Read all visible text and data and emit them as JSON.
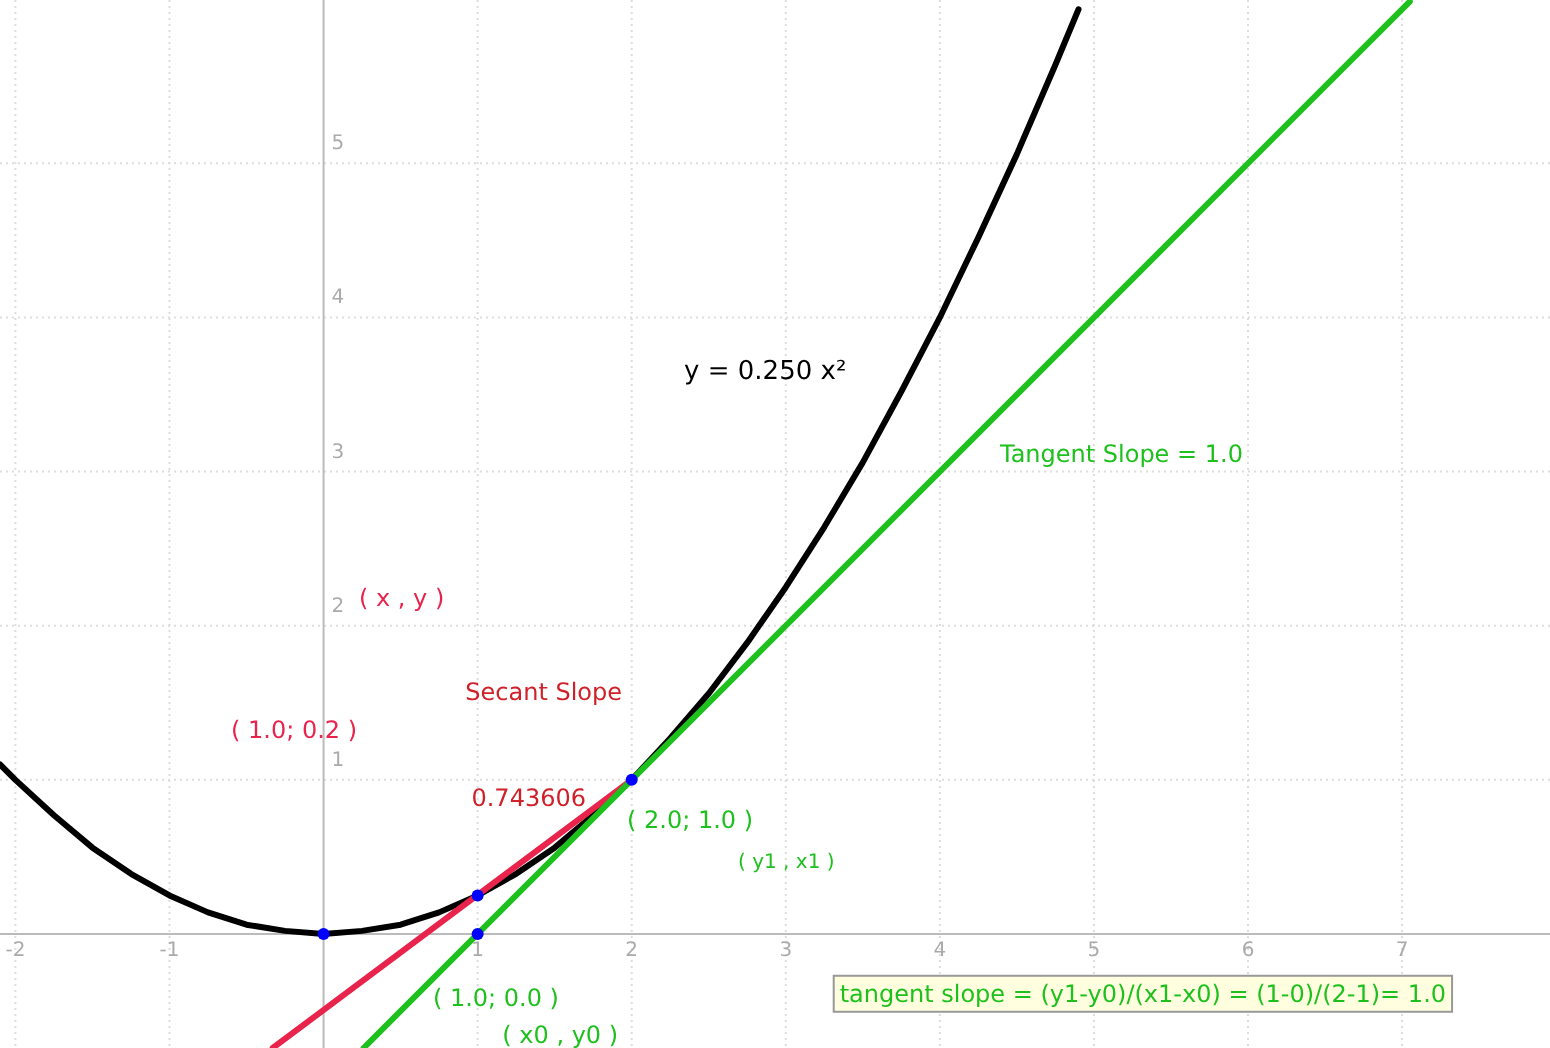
{
  "chart_data": {
    "type": "line",
    "xlim": [
      -2.1,
      7.96
    ],
    "ylim": [
      -0.74,
      6.06
    ],
    "xticks": [
      -2,
      -1,
      1,
      2,
      3,
      4,
      5,
      6,
      7
    ],
    "yticks": [
      1,
      2,
      3,
      4,
      5
    ],
    "grid": true,
    "marker": "none",
    "line_style": "solid",
    "series": [
      {
        "color": "#000000",
        "x": [
          -2.1,
          -2,
          -1.75,
          -1.5,
          -1.25,
          -1,
          -0.75,
          -0.5,
          -0.25,
          0,
          0.25,
          0.5,
          0.75,
          1,
          1.25,
          1.5,
          1.75,
          2,
          2.25,
          2.5,
          2.75,
          3,
          3.25,
          3.5,
          3.75,
          4,
          4.25,
          4.5,
          4.75,
          4.9
        ],
        "values": [
          1.1,
          1,
          0.77,
          0.56,
          0.39,
          0.25,
          0.14,
          0.06,
          0.02,
          0,
          0.02,
          0.06,
          0.14,
          0.25,
          0.39,
          0.56,
          0.77,
          1,
          1.27,
          1.56,
          1.89,
          2.25,
          2.64,
          3.06,
          3.52,
          4,
          4.52,
          5.06,
          5.64,
          6
        ]
      },
      {
        "color": "#e8244c",
        "x": [
          -0.33,
          2
        ],
        "values": [
          -0.74,
          1
        ]
      },
      {
        "color": "#1ec01e",
        "x": [
          0.26,
          7.05
        ],
        "values": [
          -0.74,
          6.05
        ]
      },
      {
        "type": "scatter",
        "marker": "circle",
        "color": "#0000ff",
        "x": [
          0,
          1,
          1,
          2
        ],
        "values": [
          0,
          0.25,
          0,
          1
        ]
      }
    ],
    "annotations": [
      "y = 0.250 x²",
      "Tangent Slope = 1.0",
      "( x , y )",
      "Secant Slope",
      "( 1.0; 0.2 )",
      "0.743606",
      "( 2.0; 1.0 )",
      "( y1 , x1 )",
      "( 1.0; 0.0 )",
      "(  x0  ,  y0  )",
      "tangent slope = (y1-y0)/(x1-x0) = (1-0)/(2-1)= 1.0"
    ]
  }
}
